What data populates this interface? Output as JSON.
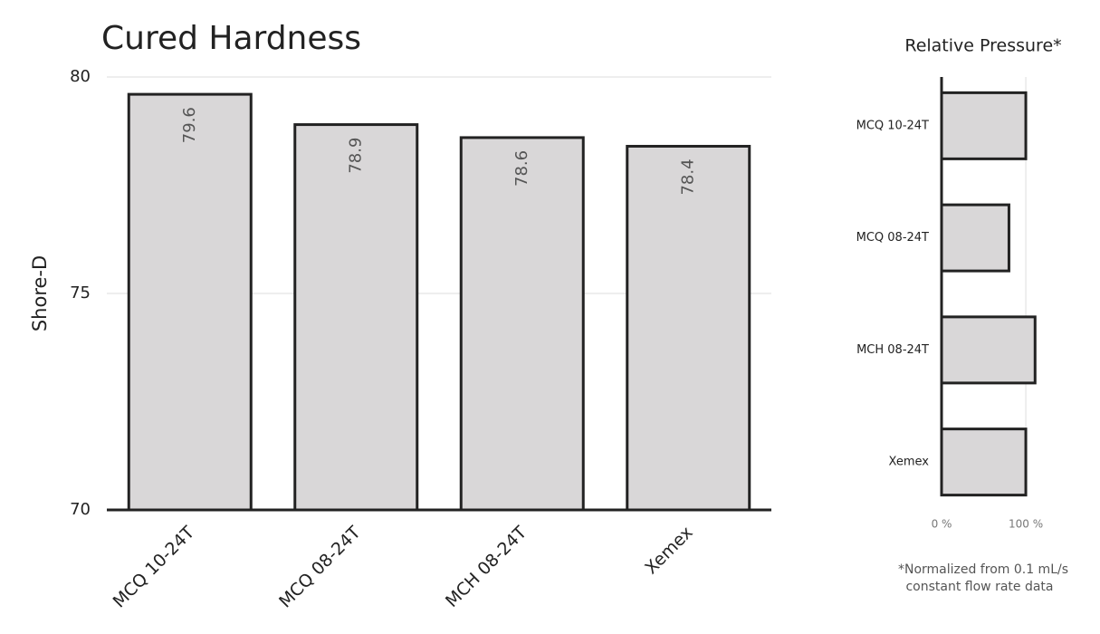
{
  "chart_data": [
    {
      "type": "bar",
      "title": "Cured Hardness",
      "ylabel": "Shore-D",
      "categories": [
        "MCQ 10-24T",
        "MCQ 08-24T",
        "MCH 08-24T",
        "Xemex"
      ],
      "values": [
        79.6,
        78.9,
        78.6,
        78.4
      ],
      "color": "#d9d7d8",
      "ylim": [
        70,
        80
      ],
      "yticks": [
        70,
        75,
        80
      ],
      "grid": true
    },
    {
      "type": "barh",
      "title": "Relative Pressure*",
      "categories": [
        "MCQ 10-24T",
        "MCQ 08-24T",
        "MCH 08-24T",
        "Xemex"
      ],
      "values": [
        100,
        80,
        111,
        100
      ],
      "color": "#d9d7d8",
      "xlim": [
        0,
        115
      ],
      "xticks": [
        {
          "value": 0,
          "label": "0 %"
        },
        {
          "value": 100,
          "label": "100 %"
        }
      ],
      "grid": true,
      "note": [
        "*Normalized from 0.1 mL/s",
        "constant flow rate data"
      ]
    }
  ]
}
